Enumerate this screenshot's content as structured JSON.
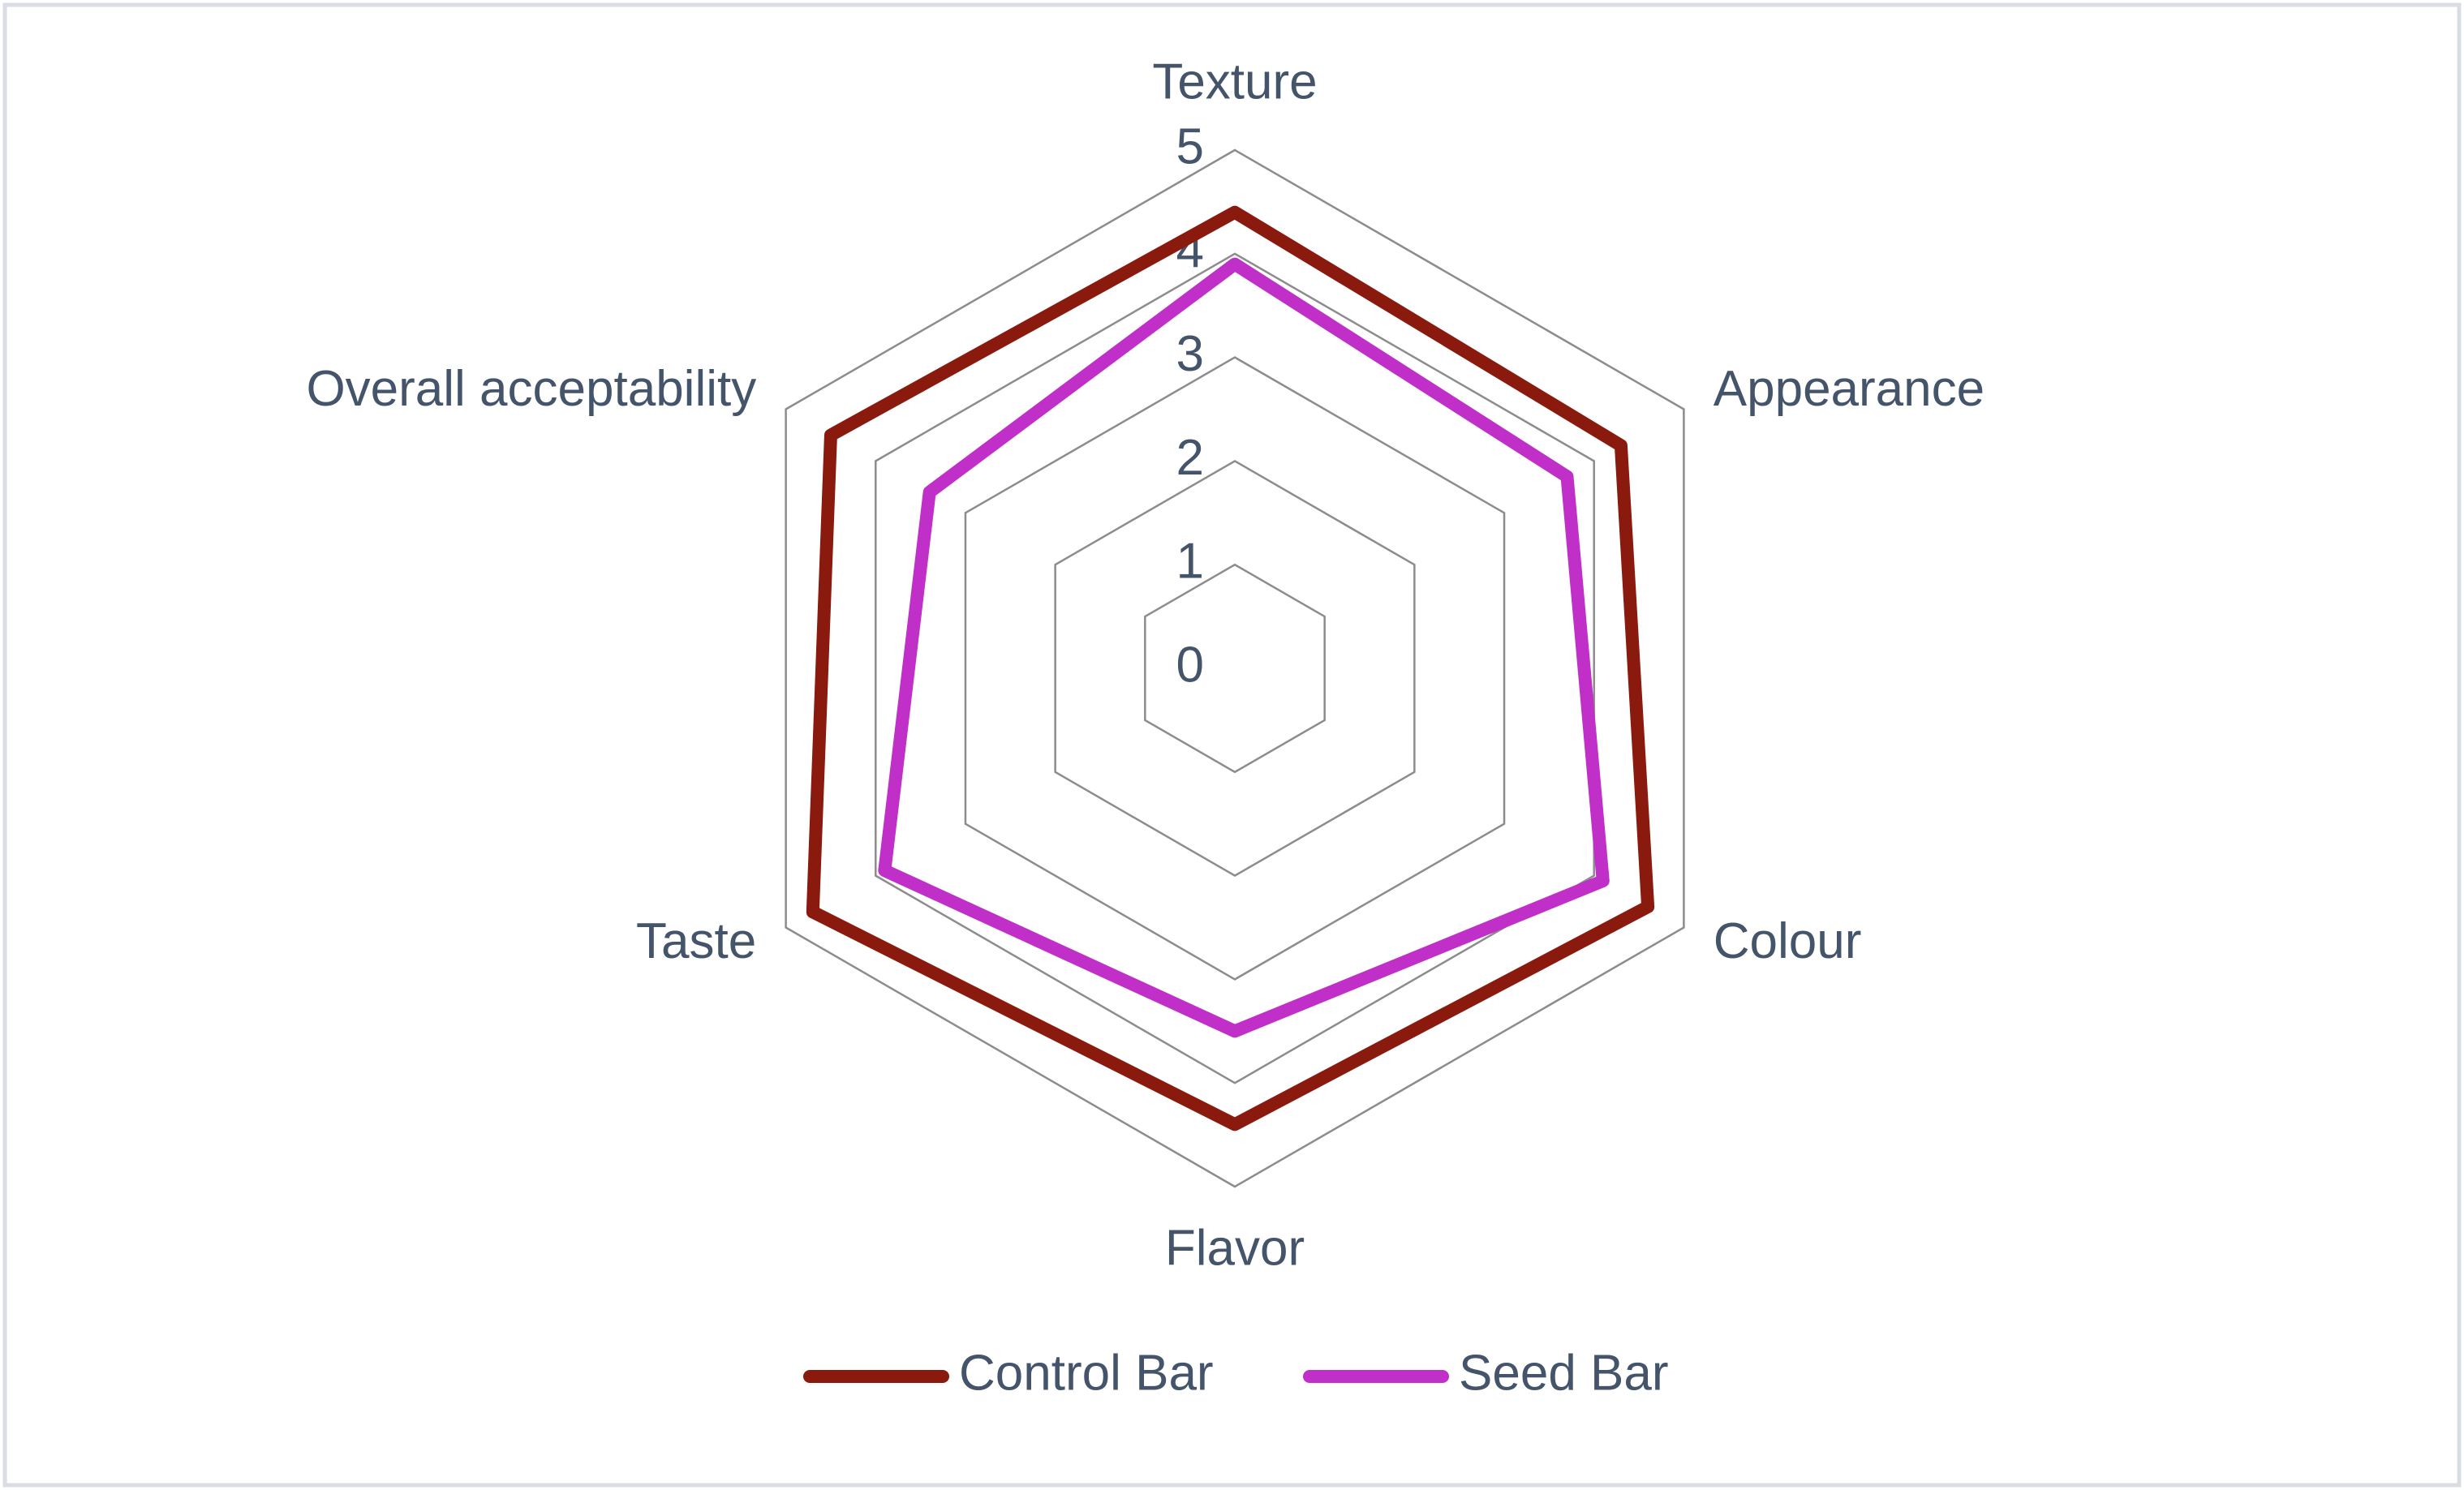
{
  "chart_data": {
    "type": "radar",
    "categories": [
      "Texture",
      "Appearance",
      "Colour",
      "Flavor",
      "Taste",
      "Overall acceptability"
    ],
    "series": [
      {
        "name": "Control Bar",
        "color": "#8b1a0e",
        "values": [
          4.4,
          4.3,
          4.6,
          4.4,
          4.7,
          4.5
        ]
      },
      {
        "name": "Seed Bar",
        "color": "#c030c8",
        "values": [
          3.9,
          3.7,
          4.1,
          3.5,
          3.9,
          3.4
        ]
      }
    ],
    "ylim": [
      0,
      5
    ],
    "yticks": [
      0,
      1,
      2,
      3,
      4,
      5
    ],
    "grid": true,
    "legend": "bottom"
  }
}
